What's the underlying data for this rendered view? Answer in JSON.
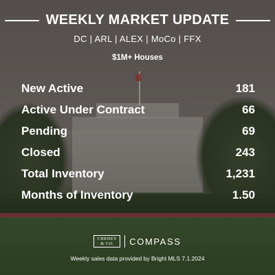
{
  "header": {
    "title": "WEEKLY MARKET UPDATE",
    "regions": "DC | ARL | ALEX | MoCo | FFX",
    "segment": "$1M+ Houses"
  },
  "stats": [
    {
      "label": "New Active",
      "value": "181"
    },
    {
      "label": "Active Under Contract",
      "value": "66"
    },
    {
      "label": "Pending",
      "value": "69"
    },
    {
      "label": "Closed",
      "value": "243"
    },
    {
      "label": "Total Inventory",
      "value": "1,231"
    },
    {
      "label": "Months of Inventory",
      "value": "1.50"
    }
  ],
  "footer": {
    "cheney_line1": "CHENEY",
    "cheney_line2": "& CO.",
    "compass": "COMPASS",
    "note": "Weekly sales data provided by Bright MLS 7.1.2024"
  }
}
